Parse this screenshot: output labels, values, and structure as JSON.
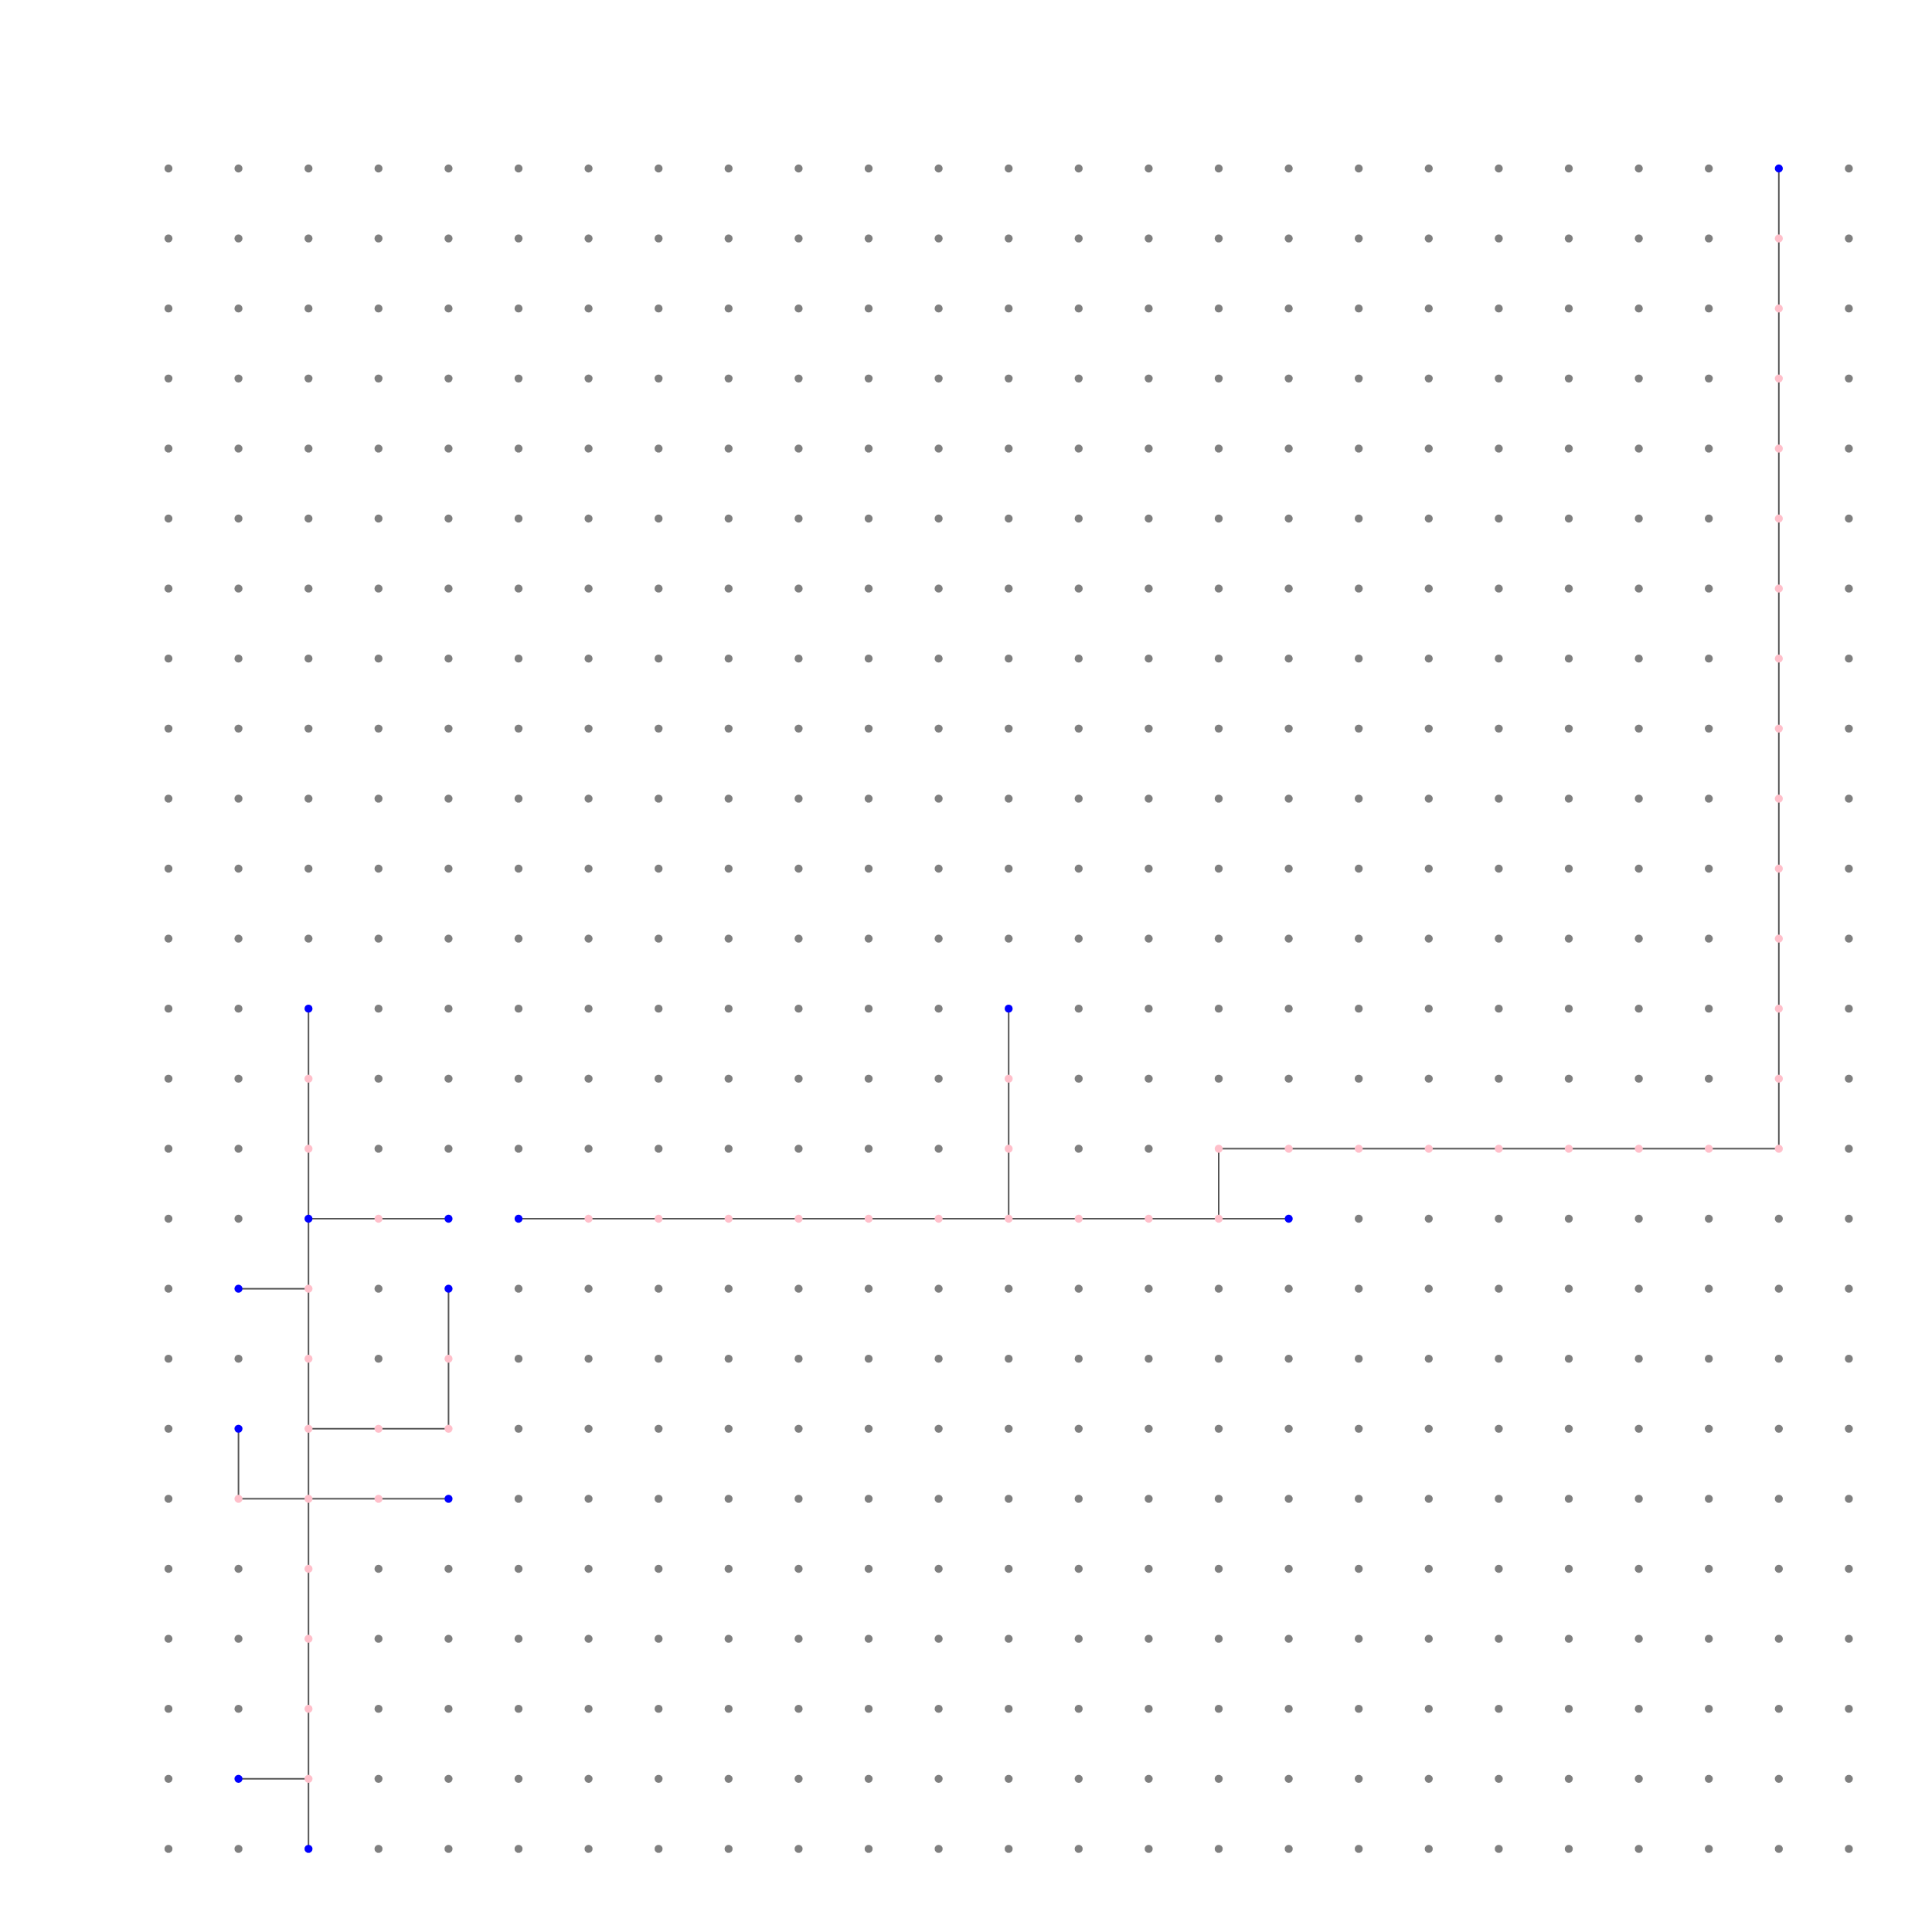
{
  "diagram": {
    "type": "grid-graph-steiner-tree",
    "grid": {
      "columns": 25,
      "rows": 25,
      "index_origin": "top-left"
    },
    "colors": {
      "grid_node": "#808080",
      "steiner_node": "#ffc0cb",
      "terminal_node": "#0000ff",
      "edge": "#555555",
      "background": "#ffffff"
    },
    "terminals": [
      [
        23,
        0
      ],
      [
        2,
        12
      ],
      [
        12,
        12
      ],
      [
        2,
        15
      ],
      [
        4,
        15
      ],
      [
        5,
        15
      ],
      [
        16,
        15
      ],
      [
        1,
        16
      ],
      [
        4,
        16
      ],
      [
        1,
        18
      ],
      [
        4,
        19
      ],
      [
        1,
        23
      ],
      [
        2,
        24
      ]
    ],
    "paths": [
      [
        [
          23,
          0
        ],
        [
          23,
          14
        ],
        [
          15,
          14
        ],
        [
          15,
          15
        ]
      ],
      [
        [
          5,
          15
        ],
        [
          16,
          15
        ]
      ],
      [
        [
          12,
          12
        ],
        [
          12,
          15
        ]
      ],
      [
        [
          2,
          12
        ],
        [
          2,
          24
        ]
      ],
      [
        [
          2,
          15
        ],
        [
          4,
          15
        ]
      ],
      [
        [
          1,
          16
        ],
        [
          2,
          16
        ]
      ],
      [
        [
          4,
          16
        ],
        [
          4,
          18
        ],
        [
          2,
          18
        ]
      ],
      [
        [
          1,
          18
        ],
        [
          1,
          19
        ],
        [
          4,
          19
        ]
      ],
      [
        [
          1,
          23
        ],
        [
          2,
          23
        ]
      ]
    ]
  }
}
